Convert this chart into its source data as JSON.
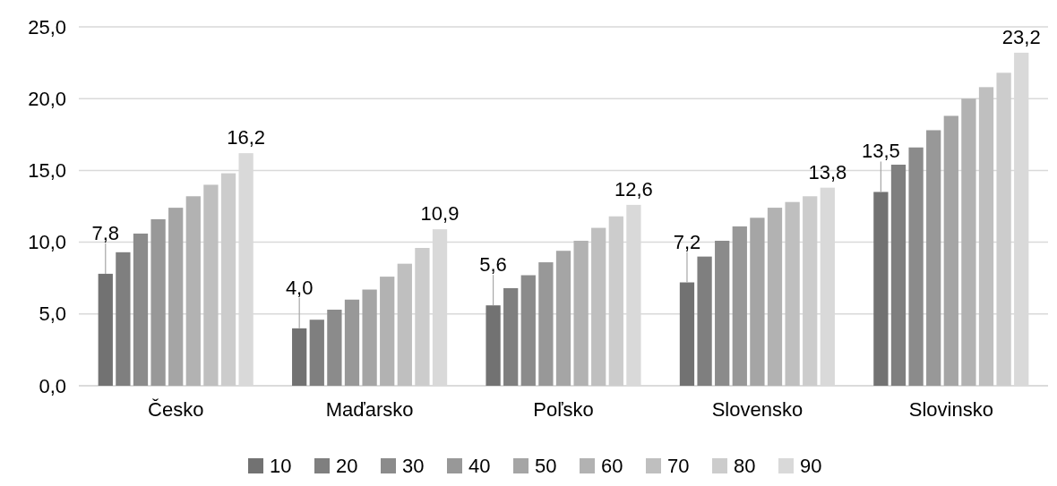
{
  "chart_data": {
    "type": "bar",
    "categories": [
      "Česko",
      "Maďarsko",
      "Poľsko",
      "Slovensko",
      "Slovinsko"
    ],
    "series": [
      {
        "name": "10",
        "color": "#727272",
        "values": [
          7.8,
          4.0,
          5.6,
          7.2,
          13.5
        ],
        "value_labels": [
          "7,8",
          "4,0",
          "5,6",
          "7,2",
          "13,5"
        ]
      },
      {
        "name": "20",
        "color": "#7f7f7f",
        "values": [
          9.3,
          4.6,
          6.8,
          9.0,
          15.4
        ]
      },
      {
        "name": "30",
        "color": "#8b8b8b",
        "values": [
          10.6,
          5.3,
          7.7,
          10.1,
          16.6
        ]
      },
      {
        "name": "40",
        "color": "#989898",
        "values": [
          11.6,
          6.0,
          8.6,
          11.1,
          17.8
        ]
      },
      {
        "name": "50",
        "color": "#a5a5a5",
        "values": [
          12.4,
          6.7,
          9.4,
          11.7,
          18.8
        ]
      },
      {
        "name": "60",
        "color": "#b2b2b2",
        "values": [
          13.2,
          7.6,
          10.1,
          12.4,
          20.0
        ]
      },
      {
        "name": "70",
        "color": "#bfbfbf",
        "values": [
          14.0,
          8.5,
          11.0,
          12.8,
          20.8
        ]
      },
      {
        "name": "80",
        "color": "#cccccc",
        "values": [
          14.8,
          9.6,
          11.8,
          13.2,
          21.8
        ]
      },
      {
        "name": "90",
        "color": "#d9d9d9",
        "values": [
          16.2,
          10.9,
          12.6,
          13.8,
          23.2
        ],
        "value_labels": [
          "16,2",
          "10,9",
          "12,6",
          "13,8",
          "23,2"
        ]
      }
    ],
    "ylim": [
      0,
      25
    ],
    "yticks": [
      {
        "value": 0,
        "label": "0,0"
      },
      {
        "value": 5,
        "label": "5,0"
      },
      {
        "value": 10,
        "label": "10,0"
      },
      {
        "value": 15,
        "label": "15,0"
      },
      {
        "value": 20,
        "label": "20,0"
      },
      {
        "value": 25,
        "label": "25,0"
      }
    ],
    "grid": "y",
    "legend": "bottom"
  }
}
